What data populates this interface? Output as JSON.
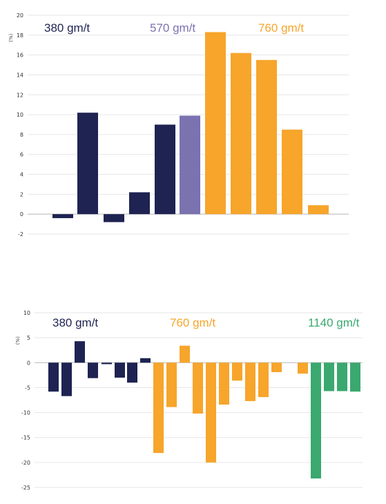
{
  "chart_data": [
    {
      "type": "bar",
      "ylabel": "(%)",
      "ylim": [
        -2,
        20
      ],
      "yticks": [
        20,
        18,
        16,
        14,
        12,
        10,
        8,
        6,
        4,
        2,
        0,
        -2
      ],
      "grid": true,
      "groups": [
        {
          "label": "380 gm/t",
          "color": "#1e2352",
          "values": [
            -0.4,
            10.2,
            -0.8,
            2.2,
            9.0
          ]
        },
        {
          "label": "570 gm/t",
          "color": "#7b72b0",
          "values": [
            9.9
          ]
        },
        {
          "label": "760 gm/t",
          "color": "#f7a52b",
          "values": [
            18.3,
            16.2,
            15.5,
            8.5,
            0.9
          ]
        }
      ]
    },
    {
      "type": "bar",
      "ylabel": "(%)",
      "ylim": [
        -25,
        10
      ],
      "yticks": [
        10,
        5,
        0,
        -5,
        -10,
        -15,
        -20,
        -25
      ],
      "grid": true,
      "groups": [
        {
          "label": "380 gm/t",
          "color": "#1e2352",
          "values": [
            -5.8,
            -6.7,
            4.3,
            -3.1,
            -0.3,
            -3.0,
            -4.0,
            0.9
          ]
        },
        {
          "label": "760 gm/t",
          "color": "#f7a52b",
          "values": [
            -18.1,
            -8.9,
            3.4,
            -10.2,
            -20.0,
            -8.4,
            -3.6,
            -7.7,
            -6.9,
            -1.9,
            -2.2
          ]
        },
        {
          "label": "1140 gm/t",
          "color": "#3aa86f",
          "values": [
            -23.2,
            -5.7,
            -5.7,
            -5.8
          ]
        }
      ]
    }
  ]
}
